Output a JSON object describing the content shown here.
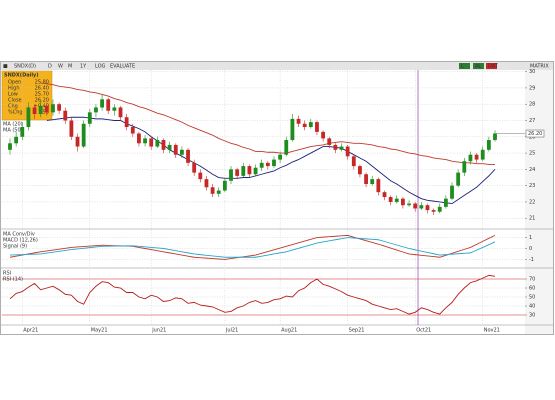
{
  "toolbar": [
    "SNDX(D)",
    "D",
    "W",
    "M",
    "1Y",
    "LOG",
    "EVALUATE"
  ],
  "toolbar_buttons": [
    "L",
    "AL",
    "DAT",
    "MATRIX"
  ],
  "info_box": {
    "title": "SNDX(Daily)",
    "rows": [
      [
        "Open",
        "25.80"
      ],
      [
        "High",
        "26.40"
      ],
      [
        "Low",
        "25.70"
      ],
      [
        "Close",
        "26.20"
      ],
      [
        "Chg",
        "+0.40"
      ],
      [
        "%Chg",
        "1.55"
      ]
    ]
  },
  "chart_data": [
    {
      "type": "candlestick",
      "categories": [
        null,
        null,
        "Apr21",
        null,
        null,
        null,
        null,
        null,
        null,
        null,
        null,
        null,
        null,
        "May21",
        null,
        null,
        null,
        null,
        null,
        null,
        null,
        null,
        null,
        "Jun21",
        null,
        null,
        null,
        null,
        null,
        null,
        null,
        null,
        null,
        null,
        null,
        "Jul21",
        null,
        null,
        null,
        null,
        null,
        null,
        null,
        null,
        "Aug21",
        null,
        null,
        null,
        null,
        null,
        null,
        null,
        null,
        null,
        null,
        "Sep21",
        null,
        null,
        null,
        null,
        null,
        null,
        null,
        null,
        null,
        null,
        "Oct21",
        null,
        null,
        null,
        null,
        null,
        null,
        null,
        null,
        null,
        null,
        "Nov21",
        null,
        null
      ],
      "ohlc": [
        [
          25.2,
          25.9,
          24.9,
          25.6
        ],
        [
          25.6,
          26.3,
          25.4,
          26.0
        ],
        [
          26.0,
          26.9,
          25.8,
          26.6
        ],
        [
          26.6,
          28.1,
          26.4,
          27.8
        ],
        [
          27.8,
          28.0,
          27.1,
          27.4
        ],
        [
          27.4,
          28.2,
          27.2,
          27.9
        ],
        [
          27.9,
          28.1,
          27.3,
          27.5
        ],
        [
          27.5,
          28.3,
          27.3,
          28.0
        ],
        [
          28.0,
          28.1,
          27.4,
          27.6
        ],
        [
          27.6,
          27.8,
          26.8,
          27.0
        ],
        [
          27.0,
          27.2,
          25.8,
          26.0
        ],
        [
          26.0,
          26.2,
          25.1,
          25.4
        ],
        [
          25.4,
          27.0,
          25.3,
          26.8
        ],
        [
          26.8,
          27.7,
          26.6,
          27.5
        ],
        [
          27.5,
          28.0,
          27.2,
          27.8
        ],
        [
          27.8,
          28.6,
          27.6,
          28.3
        ],
        [
          28.3,
          28.4,
          27.4,
          27.6
        ],
        [
          27.6,
          28.0,
          27.3,
          27.8
        ],
        [
          27.8,
          27.9,
          27.0,
          27.2
        ],
        [
          27.2,
          27.4,
          26.4,
          26.6
        ],
        [
          26.6,
          26.8,
          26.0,
          26.2
        ],
        [
          26.2,
          26.3,
          25.4,
          25.6
        ],
        [
          25.6,
          26.1,
          25.4,
          25.9
        ],
        [
          25.9,
          26.0,
          25.2,
          25.4
        ],
        [
          25.4,
          26.0,
          25.3,
          25.8
        ],
        [
          25.8,
          25.9,
          25.0,
          25.2
        ],
        [
          25.2,
          25.7,
          25.0,
          25.5
        ],
        [
          25.5,
          25.6,
          24.7,
          24.9
        ],
        [
          24.9,
          25.4,
          24.7,
          25.2
        ],
        [
          25.2,
          25.3,
          24.2,
          24.4
        ],
        [
          24.4,
          24.6,
          23.6,
          23.8
        ],
        [
          23.8,
          24.0,
          23.2,
          23.4
        ],
        [
          23.4,
          23.6,
          22.7,
          22.9
        ],
        [
          22.9,
          23.1,
          22.3,
          22.5
        ],
        [
          22.5,
          22.9,
          22.3,
          22.7
        ],
        [
          22.7,
          23.5,
          22.6,
          23.3
        ],
        [
          23.3,
          24.2,
          23.1,
          24.0
        ],
        [
          24.0,
          24.1,
          23.4,
          23.6
        ],
        [
          23.6,
          24.4,
          23.5,
          24.2
        ],
        [
          24.2,
          24.3,
          23.5,
          23.7
        ],
        [
          23.7,
          24.3,
          23.6,
          24.1
        ],
        [
          24.1,
          24.6,
          23.9,
          24.4
        ],
        [
          24.4,
          24.5,
          24.0,
          24.2
        ],
        [
          24.2,
          24.8,
          24.1,
          24.6
        ],
        [
          24.6,
          25.1,
          24.4,
          24.9
        ],
        [
          24.9,
          26.0,
          24.8,
          25.8
        ],
        [
          25.8,
          27.4,
          25.7,
          27.1
        ],
        [
          27.1,
          27.3,
          26.6,
          26.8
        ],
        [
          26.8,
          27.0,
          26.4,
          26.6
        ],
        [
          26.6,
          27.1,
          26.5,
          26.9
        ],
        [
          26.9,
          27.0,
          26.1,
          26.3
        ],
        [
          26.3,
          26.4,
          25.7,
          25.9
        ],
        [
          25.9,
          26.0,
          25.3,
          25.5
        ],
        [
          25.5,
          25.6,
          25.0,
          25.2
        ],
        [
          25.2,
          25.6,
          25.1,
          25.4
        ],
        [
          25.4,
          25.5,
          24.6,
          24.8
        ],
        [
          24.8,
          24.9,
          24.0,
          24.2
        ],
        [
          24.2,
          24.3,
          23.5,
          23.7
        ],
        [
          23.7,
          23.8,
          22.9,
          23.1
        ],
        [
          23.1,
          23.6,
          23.0,
          23.4
        ],
        [
          23.4,
          23.5,
          22.4,
          22.6
        ],
        [
          22.6,
          22.7,
          22.1,
          22.3
        ],
        [
          22.3,
          22.4,
          21.8,
          22.0
        ],
        [
          22.0,
          22.4,
          21.9,
          22.2
        ],
        [
          22.2,
          22.3,
          21.6,
          21.8
        ],
        [
          21.8,
          22.1,
          21.7,
          21.9
        ],
        [
          21.9,
          22.0,
          21.4,
          21.6
        ],
        [
          21.6,
          22.0,
          21.5,
          21.8
        ],
        [
          21.8,
          21.9,
          21.3,
          21.5
        ],
        [
          21.5,
          21.6,
          21.2,
          21.4
        ],
        [
          21.4,
          21.9,
          21.3,
          21.7
        ],
        [
          21.7,
          22.4,
          21.6,
          22.2
        ],
        [
          22.2,
          23.2,
          22.1,
          23.0
        ],
        [
          23.0,
          24.0,
          22.9,
          23.8
        ],
        [
          23.8,
          24.7,
          23.6,
          24.5
        ],
        [
          24.5,
          25.1,
          24.3,
          24.9
        ],
        [
          24.9,
          25.0,
          24.4,
          24.6
        ],
        [
          24.6,
          25.4,
          24.5,
          25.2
        ],
        [
          25.2,
          26.0,
          25.1,
          25.8
        ],
        [
          25.8,
          26.4,
          25.7,
          26.2
        ]
      ],
      "up_color": "#1e8c1e",
      "down_color": "#c62828",
      "series": [
        {
          "name": "MA (20)",
          "color": "#1a237e",
          "values": [
            null,
            null,
            null,
            null,
            null,
            null,
            27.0,
            27.05,
            27.1,
            27.15,
            27.2,
            27.2,
            27.2,
            27.15,
            27.1,
            27.1,
            27.05,
            27.0,
            27.0,
            26.8,
            26.65,
            26.5,
            26.3,
            26.0,
            25.75,
            25.5,
            25.2,
            25.0,
            24.8,
            24.6,
            24.4,
            24.2,
            23.95,
            23.7,
            23.5,
            23.45,
            23.45,
            23.45,
            23.5,
            23.5,
            23.6,
            23.7,
            23.8,
            23.9,
            24.1,
            24.25,
            24.45,
            24.6,
            24.8,
            25.0,
            25.2,
            25.4,
            25.4,
            25.35,
            25.3,
            25.1,
            24.9,
            24.7,
            24.5,
            24.2,
            23.9,
            23.6,
            23.3,
            23.1,
            22.85,
            22.6,
            22.4,
            22.2,
            22.1,
            22.05,
            22.0,
            21.95,
            21.9,
            22.15,
            22.4,
            22.65,
            22.9,
            23.25,
            23.6,
            24.0
          ]
        },
        {
          "name": "MA (50)",
          "color": "#c0392b",
          "values": [
            null,
            null,
            null,
            null,
            null,
            29.3,
            29.25,
            29.2,
            29.1,
            29.05,
            29.0,
            28.9,
            28.85,
            28.75,
            28.7,
            28.6,
            28.5,
            28.35,
            28.25,
            28.1,
            28.0,
            27.85,
            27.75,
            27.6,
            27.45,
            27.35,
            27.2,
            27.05,
            26.9,
            26.7,
            26.55,
            26.4,
            26.25,
            26.1,
            25.9,
            25.75,
            25.6,
            25.5,
            25.35,
            25.25,
            25.1,
            25.1,
            25.05,
            25.05,
            25.0,
            25.0,
            25.1,
            25.2,
            25.3,
            25.4,
            25.45,
            25.5,
            25.6,
            25.65,
            25.7,
            25.65,
            25.6,
            25.6,
            25.55,
            25.5,
            25.4,
            25.35,
            25.25,
            25.2,
            25.1,
            25.0,
            24.95,
            24.85,
            24.8,
            24.7,
            24.65,
            24.6,
            24.5,
            24.45,
            24.4,
            24.4,
            24.35,
            24.35,
            24.3,
            24.3
          ]
        }
      ],
      "last_price": {
        "value": 26.2,
        "label": "26.20"
      },
      "ylim": [
        20.4,
        30.1
      ],
      "yticks": [
        21,
        22,
        23,
        24,
        25,
        26,
        27,
        28,
        29,
        30
      ],
      "grid": true
    },
    {
      "type": "line",
      "title": "MA Conv/Div",
      "series": [
        {
          "name": "MACD (12,26)",
          "color": "#c0392b",
          "values": [
            -0.8,
            -0.7,
            -0.6,
            -0.5,
            -0.4,
            -0.3,
            -0.22,
            -0.14,
            -0.06,
            0.02,
            0.1,
            0.14,
            0.18,
            0.22,
            0.26,
            0.3,
            0.28,
            0.26,
            0.24,
            0.22,
            0.2,
            0.1,
            0.0,
            -0.1,
            -0.2,
            -0.3,
            -0.4,
            -0.5,
            -0.6,
            -0.7,
            -0.8,
            -0.84,
            -0.88,
            -0.92,
            -0.96,
            -1.0,
            -0.92,
            -0.84,
            -0.76,
            -0.68,
            -0.6,
            -0.44,
            -0.28,
            -0.12,
            0.04,
            0.2,
            0.36,
            0.52,
            0.68,
            0.84,
            1.0,
            1.04,
            1.08,
            1.12,
            1.16,
            1.2,
            1.04,
            0.88,
            0.72,
            0.56,
            0.4,
            0.22,
            0.04,
            -0.14,
            -0.32,
            -0.5,
            -0.56,
            -0.62,
            -0.68,
            -0.74,
            -0.8,
            -0.62,
            -0.44,
            -0.26,
            -0.08,
            0.1,
            0.38,
            0.65,
            0.93,
            1.2
          ]
        },
        {
          "name": "Signal (9)",
          "color": "#26a6c9",
          "values": [
            -0.6,
            -0.58,
            -0.56,
            -0.54,
            -0.52,
            -0.5,
            -0.42,
            -0.34,
            -0.26,
            -0.18,
            -0.1,
            -0.04,
            0.02,
            0.08,
            0.14,
            0.2,
            0.21,
            0.22,
            0.23,
            0.24,
            0.25,
            0.2,
            0.15,
            0.1,
            0.05,
            0.0,
            -0.1,
            -0.2,
            -0.3,
            -0.4,
            -0.5,
            -0.56,
            -0.62,
            -0.68,
            -0.74,
            -0.8,
            -0.8,
            -0.8,
            -0.8,
            -0.8,
            -0.8,
            -0.7,
            -0.6,
            -0.5,
            -0.4,
            -0.3,
            -0.14,
            0.02,
            0.18,
            0.34,
            0.5,
            0.6,
            0.7,
            0.8,
            0.9,
            1.0,
            0.96,
            0.92,
            0.88,
            0.84,
            0.8,
            0.64,
            0.48,
            0.32,
            0.16,
            0.0,
            -0.12,
            -0.24,
            -0.36,
            -0.48,
            -0.6,
            -0.56,
            -0.52,
            -0.48,
            -0.44,
            -0.4,
            -0.15,
            0.1,
            0.35,
            0.6
          ]
        }
      ],
      "ylim": [
        -1.6,
        1.6
      ],
      "yticks": [
        -1,
        0,
        1
      ],
      "grid": true
    },
    {
      "type": "line",
      "title": "RSI",
      "series": [
        {
          "name": "RSI (14)",
          "color": "#b71c1c",
          "values": [
            48,
            54,
            56,
            61,
            65,
            58,
            60,
            62,
            58,
            53,
            52,
            45,
            42,
            55,
            62,
            67,
            66,
            61,
            60,
            55,
            55,
            50,
            48,
            52,
            50,
            45,
            46,
            49,
            48,
            43,
            44,
            41,
            40,
            39,
            36,
            33,
            34,
            38,
            40,
            44,
            46,
            43,
            44,
            47,
            48,
            51,
            50,
            57,
            60,
            66,
            70,
            64,
            62,
            59,
            56,
            52,
            50,
            48,
            46,
            42,
            40,
            38,
            36,
            37,
            34,
            31,
            33,
            38,
            36,
            33,
            31,
            38,
            44,
            53,
            60,
            66,
            68,
            71,
            74,
            73
          ]
        }
      ],
      "hlines": [
        30,
        70
      ],
      "hline_color": "#d32f2f",
      "ylim": [
        20,
        80
      ],
      "yticks": [
        30,
        40,
        50,
        60,
        70
      ],
      "grid": true
    }
  ]
}
